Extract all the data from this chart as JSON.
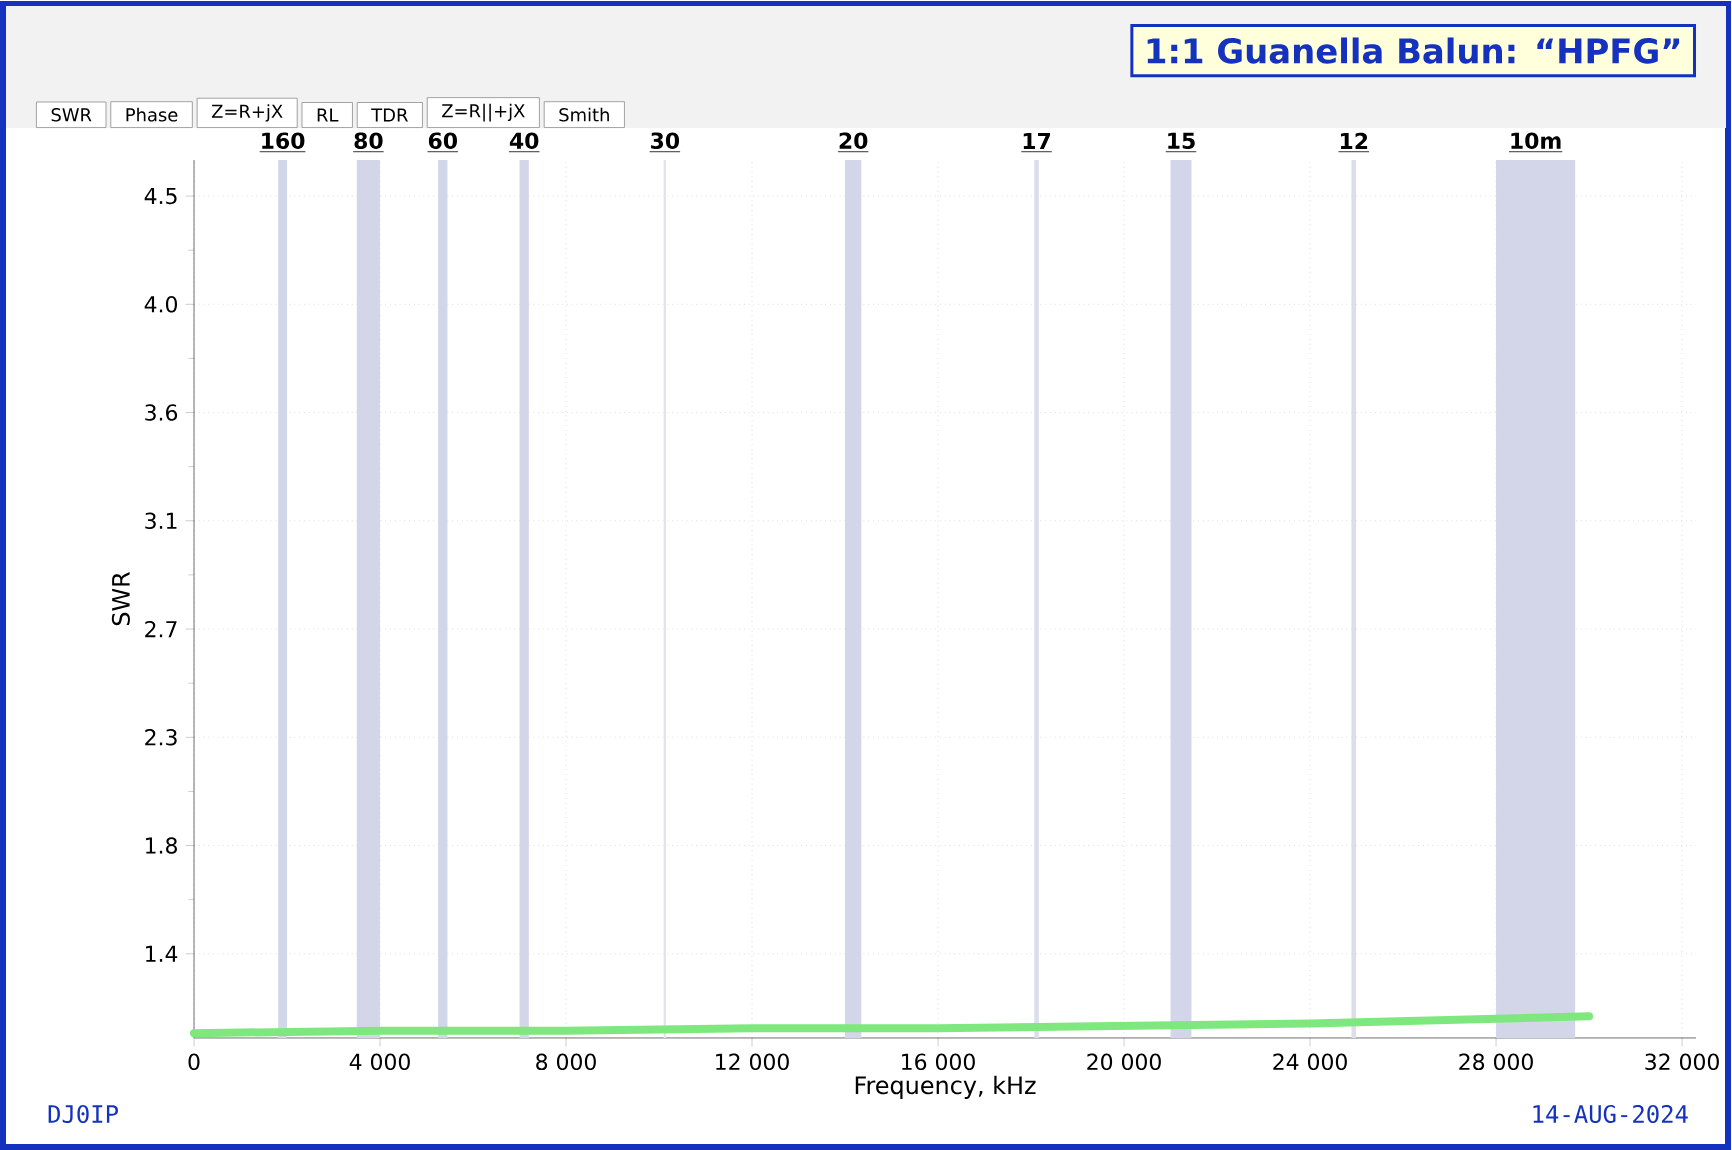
{
  "chart_data": {
    "type": "line",
    "title": "1:1 Guanella Balun: “HPFG”",
    "xlabel": "Frequency, kHz",
    "ylabel": "SWR",
    "x": [
      0,
      4000,
      8000,
      12000,
      16000,
      20000,
      24000,
      28000,
      30000
    ],
    "series": [
      {
        "color": "#7ee87e",
        "values": [
          1.02,
          1.03,
          1.03,
          1.04,
          1.04,
          1.05,
          1.06,
          1.08,
          1.09
        ]
      }
    ],
    "xlim": [
      0,
      32300
    ],
    "ylim": [
      1.0,
      4.65
    ],
    "xticks": [
      0,
      {
        "value": 4000,
        "label": "4 000"
      },
      {
        "value": 8000,
        "label": "8 000"
      },
      {
        "value": 12000,
        "label": "12 000"
      },
      {
        "value": 16000,
        "label": "16 000"
      },
      {
        "value": 20000,
        "label": "20 000"
      },
      {
        "value": 24000,
        "label": "24 000"
      },
      {
        "value": 28000,
        "label": "28 000"
      },
      {
        "value": 32000,
        "label": "32 000"
      }
    ],
    "yticks": [
      {
        "value": 1.35,
        "label": "1.4"
      },
      1.8,
      {
        "value": 2.25,
        "label": "2.3"
      },
      2.7,
      {
        "value": 3.15,
        "label": "3.1"
      },
      3.6,
      {
        "value": 4.05,
        "label": "4.0"
      },
      4.5
    ],
    "bands": [
      {
        "axis": "x",
        "from": 1810,
        "to": 2000,
        "label": "160",
        "color": "#d3d5e8"
      },
      {
        "axis": "x",
        "from": 3500,
        "to": 4000,
        "label": "80",
        "color": "#d3d5e8"
      },
      {
        "axis": "x",
        "from": 5250,
        "to": 5450,
        "label": "60",
        "color": "#d3d5e8"
      },
      {
        "axis": "x",
        "from": 7000,
        "to": 7200,
        "label": "40",
        "color": "#d3d5e8"
      },
      {
        "axis": "x",
        "from": 10100,
        "to": 10150,
        "label": "30",
        "color": "#e2e3ee"
      },
      {
        "axis": "x",
        "from": 14000,
        "to": 14350,
        "label": "20",
        "color": "#d3d5e8"
      },
      {
        "axis": "x",
        "from": 18068,
        "to": 18168,
        "label": "17",
        "color": "#dcdeec"
      },
      {
        "axis": "x",
        "from": 21000,
        "to": 21450,
        "label": "15",
        "color": "#d3d5e8"
      },
      {
        "axis": "x",
        "from": 24890,
        "to": 24990,
        "label": "12",
        "color": "#dcdeec"
      },
      {
        "axis": "x",
        "from": 28000,
        "to": 29700,
        "label": "10m",
        "color": "#d3d5e8"
      }
    ],
    "grid": true,
    "line_style": "solid",
    "annotations": [
      "SWR",
      "Phase",
      "Z=R+jX",
      "RL",
      "TDR",
      "Z=R||+jX",
      "Smith",
      "DJ0IP",
      "14-AUG-2024"
    ]
  }
}
